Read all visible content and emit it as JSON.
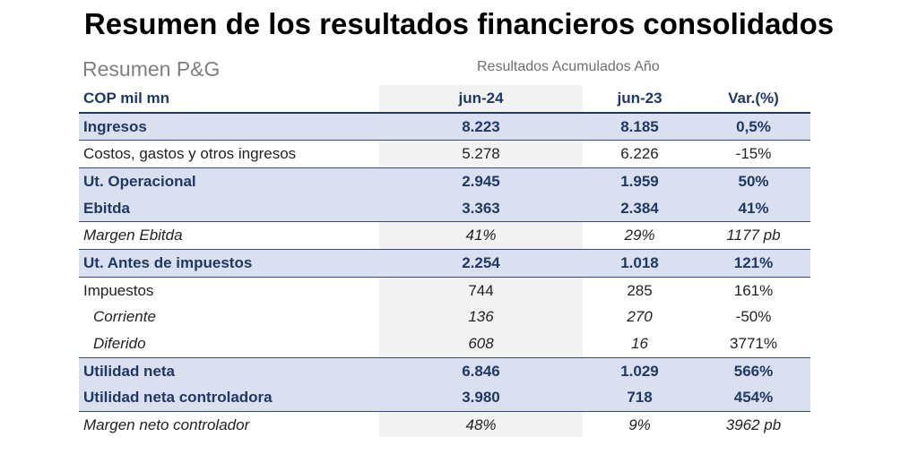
{
  "title": "Resumen de los resultados financieros consolidados",
  "subtitle_left": "Resumen P&G",
  "subtitle_right": "Resultados Acumulados Año",
  "table": {
    "header": [
      "COP mil mn",
      "jun-24",
      "jun-23",
      "Var.(%)"
    ],
    "rows": [
      {
        "label": "Ingresos",
        "jun24": "8.223",
        "jun23": "8.185",
        "var": "0,5%"
      },
      {
        "label": "Costos, gastos y otros ingresos",
        "jun24": "5.278",
        "jun23": "6.226",
        "var": "-15%"
      },
      {
        "label": "Ut. Operacional",
        "jun24": "2.945",
        "jun23": "1.959",
        "var": "50%"
      },
      {
        "label": "Ebitda",
        "jun24": "3.363",
        "jun23": "2.384",
        "var": "41%"
      },
      {
        "label": "Margen Ebitda",
        "jun24": "41%",
        "jun23": "29%",
        "var": "1177 pb"
      },
      {
        "label": "Ut. Antes de impuestos",
        "jun24": "2.254",
        "jun23": "1.018",
        "var": "121%"
      },
      {
        "label": "Impuestos",
        "jun24": "744",
        "jun23": "285",
        "var": "161%"
      },
      {
        "label": "Corriente",
        "jun24": "136",
        "jun23": "270",
        "var": "-50%"
      },
      {
        "label": "Diferido",
        "jun24": "608",
        "jun23": "16",
        "var": "3771%"
      },
      {
        "label": "Utilidad neta",
        "jun24": "6.846",
        "jun23": "1.029",
        "var": "566%"
      },
      {
        "label": "Utilidad neta controladora",
        "jun24": "3.980",
        "jun23": "718",
        "var": "454%"
      },
      {
        "label": "Margen neto controlador",
        "jun24": "48%",
        "jun23": "9%",
        "var": "3962 pb"
      }
    ]
  },
  "colors": {
    "header_text": "#1f3864",
    "highlight_row": "#dae0f0",
    "grey_column": "#f2f2f2"
  }
}
